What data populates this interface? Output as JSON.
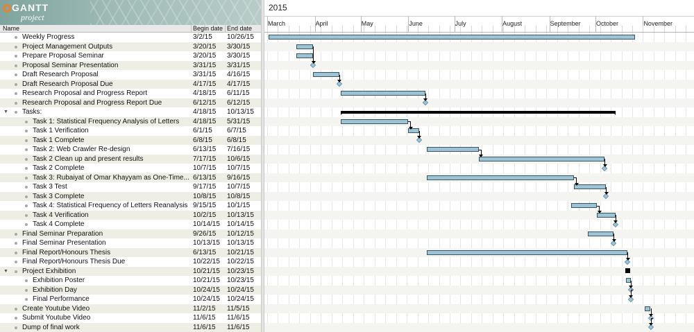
{
  "app": {
    "brand": "GANTT",
    "subtitle": "project"
  },
  "table": {
    "columns": {
      "name": "Name",
      "begin": "Begin date",
      "end": "End date"
    },
    "rows": [
      {
        "name": "Weekly Progress",
        "begin": "3/2/15",
        "end": "10/26/15",
        "level": 0
      },
      {
        "name": "Project Management Outputs",
        "begin": "3/20/15",
        "end": "3/30/15",
        "level": 0
      },
      {
        "name": "Prepare Proposal Seminar",
        "begin": "3/20/15",
        "end": "3/30/15",
        "level": 0
      },
      {
        "name": "Proposal Seminar Presentation",
        "begin": "3/31/15",
        "end": "3/31/15",
        "level": 0
      },
      {
        "name": "Draft Research Proposal",
        "begin": "3/31/15",
        "end": "4/16/15",
        "level": 0
      },
      {
        "name": "Draft Research Proposal Due",
        "begin": "4/17/15",
        "end": "4/17/15",
        "level": 0
      },
      {
        "name": "Research Proposal and Progress Report",
        "begin": "4/18/15",
        "end": "6/11/15",
        "level": 0
      },
      {
        "name": "Research Proposal and Progress Report Due",
        "begin": "6/12/15",
        "end": "6/12/15",
        "level": 0
      },
      {
        "name": "Tasks:",
        "begin": "4/18/15",
        "end": "10/13/15",
        "level": 0,
        "group": true
      },
      {
        "name": "Task 1: Statistical Frequency Analysis of Letters",
        "begin": "4/18/15",
        "end": "5/31/15",
        "level": 1
      },
      {
        "name": "Task 1 Verification",
        "begin": "6/1/15",
        "end": "6/7/15",
        "level": 1
      },
      {
        "name": "Task 1 Complete",
        "begin": "6/8/15",
        "end": "6/8/15",
        "level": 1
      },
      {
        "name": "Task 2: Web Crawler Re-design",
        "begin": "6/13/15",
        "end": "7/16/15",
        "level": 1
      },
      {
        "name": "Task 2 Clean up and present results",
        "begin": "7/17/15",
        "end": "10/6/15",
        "level": 1
      },
      {
        "name": "Task 2 Complete",
        "begin": "10/7/15",
        "end": "10/7/15",
        "level": 1
      },
      {
        "name": "Task 3: Rubaiyat of Omar Khayyam as One-Time...",
        "begin": "6/13/15",
        "end": "9/16/15",
        "level": 1
      },
      {
        "name": "Task 3 Test",
        "begin": "9/17/15",
        "end": "10/7/15",
        "level": 1
      },
      {
        "name": "Task 3 Complete",
        "begin": "10/8/15",
        "end": "10/8/15",
        "level": 1
      },
      {
        "name": "Task 4: Statistical Frequency of Letters Reanalysis",
        "begin": "9/15/15",
        "end": "10/1/15",
        "level": 1
      },
      {
        "name": "Task 4 Verification",
        "begin": "10/2/15",
        "end": "10/13/15",
        "level": 1
      },
      {
        "name": "Task 4 Complete",
        "begin": "10/14/15",
        "end": "10/14/15",
        "level": 1
      },
      {
        "name": "Final Seminar Preparation",
        "begin": "9/26/15",
        "end": "10/12/15",
        "level": 0
      },
      {
        "name": "Final Seminar Presentation",
        "begin": "10/13/15",
        "end": "10/13/15",
        "level": 0
      },
      {
        "name": "Final Report/Honours Thesis",
        "begin": "6/13/15",
        "end": "10/21/15",
        "level": 0
      },
      {
        "name": "Final Report/Honours Thesis Due",
        "begin": "10/22/15",
        "end": "10/22/15",
        "level": 0
      },
      {
        "name": "Project Exhibition",
        "begin": "10/21/15",
        "end": "10/23/15",
        "level": 0,
        "group": true
      },
      {
        "name": "Exhibition Poster",
        "begin": "10/21/15",
        "end": "10/23/15",
        "level": 1
      },
      {
        "name": "Exhibition Day",
        "begin": "10/24/15",
        "end": "10/24/15",
        "level": 1
      },
      {
        "name": "Final Performance",
        "begin": "10/24/15",
        "end": "10/24/15",
        "level": 1
      },
      {
        "name": "Create Youtube Video",
        "begin": "11/2/15",
        "end": "11/5/15",
        "level": 0
      },
      {
        "name": "Submit Youtube Video",
        "begin": "11/6/15",
        "end": "11/6/15",
        "level": 0
      },
      {
        "name": "Dump of final work",
        "begin": "11/6/15",
        "end": "11/6/15",
        "level": 0
      }
    ]
  },
  "timeline": {
    "year": "2015",
    "months": [
      "March",
      "April",
      "May",
      "June",
      "July",
      "August",
      "September",
      "October",
      "November"
    ]
  },
  "colors": {
    "bar_fill": "#9cc4d4",
    "bar_border": "#3a5360",
    "milestone": "#9ec3d6",
    "summary": "#000000"
  }
}
